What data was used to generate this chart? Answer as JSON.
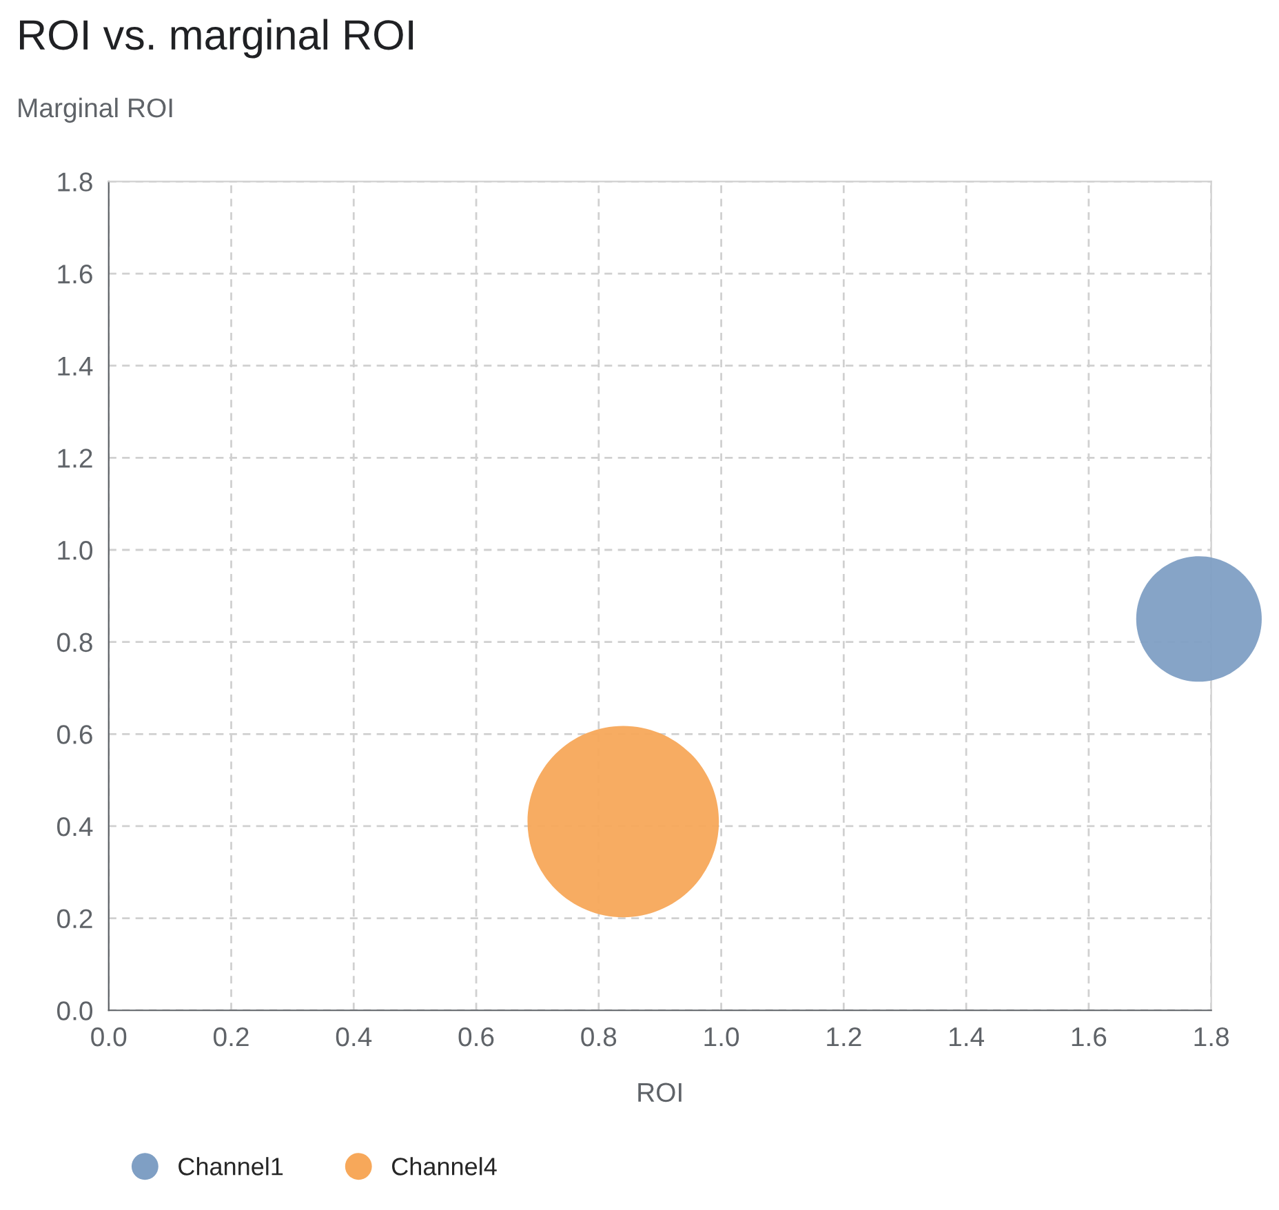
{
  "chart_data": {
    "type": "bubble",
    "title": "ROI vs. marginal ROI",
    "ylabel": "Marginal ROI",
    "xlabel": "ROI",
    "xlim": [
      0,
      1.8
    ],
    "xticks": [
      {
        "value": 0,
        "label": "0.0"
      },
      0.2,
      0.4,
      0.6,
      0.8,
      {
        "value": 1,
        "label": "1.0"
      },
      1.2,
      1.4,
      1.6,
      1.8
    ],
    "ylim": [
      0,
      1.8
    ],
    "yticks": [
      {
        "value": 0,
        "label": "0.0"
      },
      0.2,
      0.4,
      0.6,
      0.8,
      {
        "value": 1,
        "label": "1.0"
      },
      1.2,
      1.4,
      1.6,
      1.8
    ],
    "grid": true,
    "legend": "bottom",
    "series": [
      {
        "name": "Channel1",
        "color": "#7f9fc4",
        "x": [
          1.78
        ],
        "values": [
          0.85
        ],
        "sizes": [
          0.43
        ]
      },
      {
        "name": "Channel4",
        "color": "#f7a85a",
        "x": [
          0.84
        ],
        "values": [
          0.41
        ],
        "sizes": [
          1
        ]
      }
    ]
  }
}
